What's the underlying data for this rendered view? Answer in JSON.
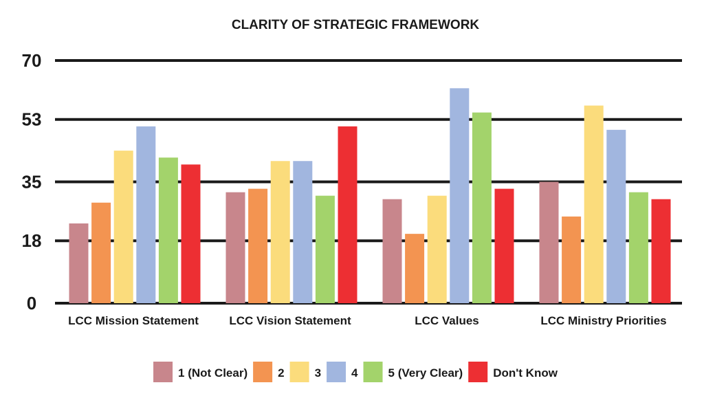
{
  "chart_data": {
    "type": "bar",
    "title": "CLARITY OF STRATEGIC FRAMEWORK",
    "xlabel": "",
    "ylabel": "",
    "ylim": [
      0,
      70
    ],
    "yticks": [
      "0",
      "18",
      "35",
      "53",
      "70"
    ],
    "grid": true,
    "legend_position": "bottom",
    "categories": [
      "LCC Mission Statement",
      "LCC Vision Statement",
      "LCC Values",
      "LCC Ministry Priorities"
    ],
    "series": [
      {
        "name": "1 (Not Clear)",
        "color": "#c8868c",
        "values": [
          23,
          32,
          30,
          35
        ]
      },
      {
        "name": "2",
        "color": "#f39451",
        "values": [
          29,
          33,
          20,
          25
        ]
      },
      {
        "name": "3",
        "color": "#fbdc7c",
        "values": [
          44,
          41,
          31,
          57
        ]
      },
      {
        "name": "4",
        "color": "#a1b6df",
        "values": [
          51,
          41,
          62,
          50
        ]
      },
      {
        "name": "5 (Very Clear)",
        "color": "#a3d36b",
        "values": [
          42,
          31,
          55,
          32
        ]
      },
      {
        "name": "Don't Know",
        "color": "#ed2f33",
        "values": [
          40,
          51,
          33,
          30
        ]
      }
    ]
  }
}
